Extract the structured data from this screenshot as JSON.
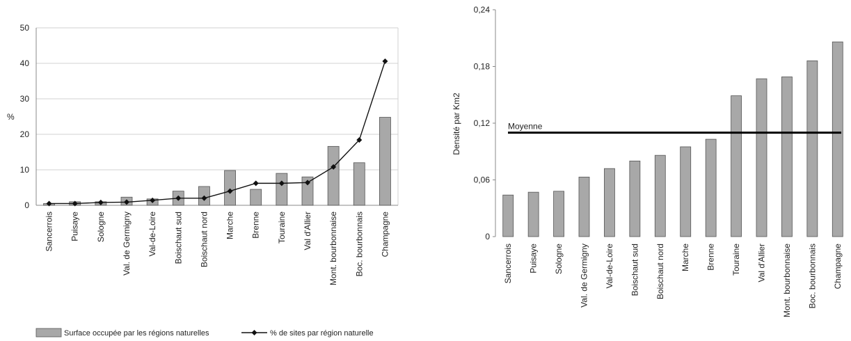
{
  "colors": {
    "bar_fill": "#a8a8a8",
    "bar_stroke": "#555555",
    "line": "#111111",
    "grid": "#d0d0d0",
    "axis": "#888888",
    "reference": "#000000"
  },
  "chart_data": [
    {
      "type": "bar+line",
      "title": "",
      "xlabel": "",
      "ylabel": "%",
      "ylim": [
        0,
        50
      ],
      "yticks": [
        "0",
        "10",
        "20",
        "30",
        "40",
        "50"
      ],
      "grid": true,
      "legend_position": "bottom",
      "categories": [
        "Sancerrois",
        "Puisaye",
        "Sologne",
        "Val. de Germigny",
        "Val-de-Loire",
        "Boischaut sud",
        "Boischaut nord",
        "Marche",
        "Brenne",
        "Touraine",
        "Val d'Allier",
        "Mont. bourbonnaise",
        "Boc. bourbonnais",
        "Champagne"
      ],
      "series": [
        {
          "name": "Surface occupée par les régions naturelles",
          "type": "bar",
          "values": [
            0.5,
            1.0,
            1.0,
            2.3,
            1.8,
            4.0,
            5.3,
            9.8,
            4.5,
            9.0,
            8.0,
            16.6,
            12.0,
            24.8
          ]
        },
        {
          "name": "% de sites par région naturelle",
          "type": "line",
          "values": [
            0.5,
            0.5,
            0.8,
            0.9,
            1.4,
            2.0,
            2.0,
            4.0,
            6.2,
            6.2,
            6.4,
            10.8,
            18.4,
            40.6
          ]
        }
      ]
    },
    {
      "type": "bar",
      "title": "",
      "xlabel": "",
      "ylabel": "Densité par Km2",
      "ylim": [
        0,
        0.24
      ],
      "yticks": [
        "0",
        "0,06",
        "0,12",
        "0,18",
        "0,24"
      ],
      "grid": false,
      "categories": [
        "Sancerrois",
        "Puisaye",
        "Sologne",
        "Val. de Germigny",
        "Val-de-Loire",
        "Boischaut sud",
        "Boischaut nord",
        "Marche",
        "Brenne",
        "Touraine",
        "Val d'Allier",
        "Mont. bourbonnaise",
        "Boc. bourbonnais",
        "Champagne"
      ],
      "values": [
        0.044,
        0.047,
        0.048,
        0.063,
        0.072,
        0.08,
        0.086,
        0.095,
        0.103,
        0.149,
        0.167,
        0.169,
        0.186,
        0.206
      ],
      "reference_line": {
        "label": "Moyenne",
        "value": 0.11
      }
    }
  ]
}
